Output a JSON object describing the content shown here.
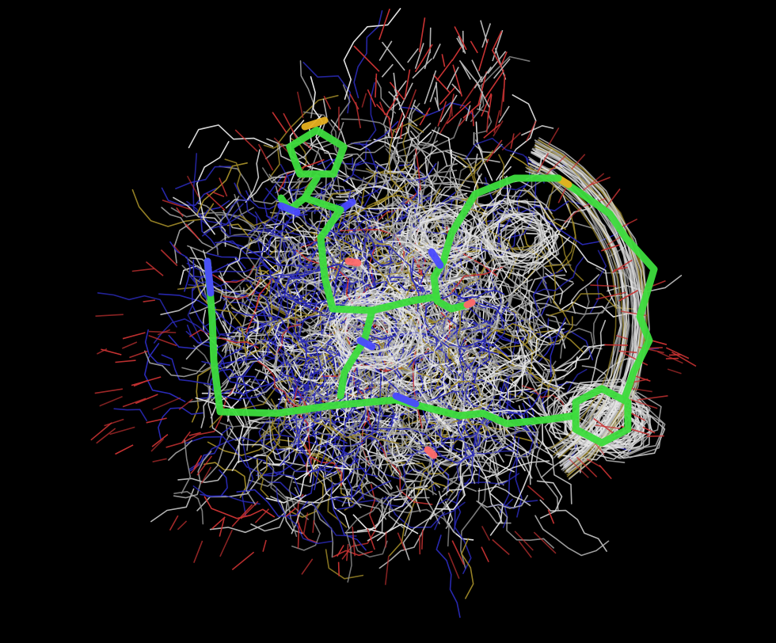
{
  "scene": {
    "background": "#000000",
    "subject": "molecular-structure-ensemble",
    "colors": {
      "carbon_thin": "#b4b4b4",
      "carbon_thin_light": "#e6e6e6",
      "carbon_thin_dark": "#8c8c8c",
      "nitrogen": "#2a2ab8",
      "oxygen": "#c83232",
      "sulfur": "#a08a28",
      "highlight_carbon": "#3ddc3d",
      "highlight_nitrogen": "#4a4aff",
      "highlight_oxygen": "#ff6a6a",
      "highlight_sulfur": "#e6b020"
    }
  }
}
